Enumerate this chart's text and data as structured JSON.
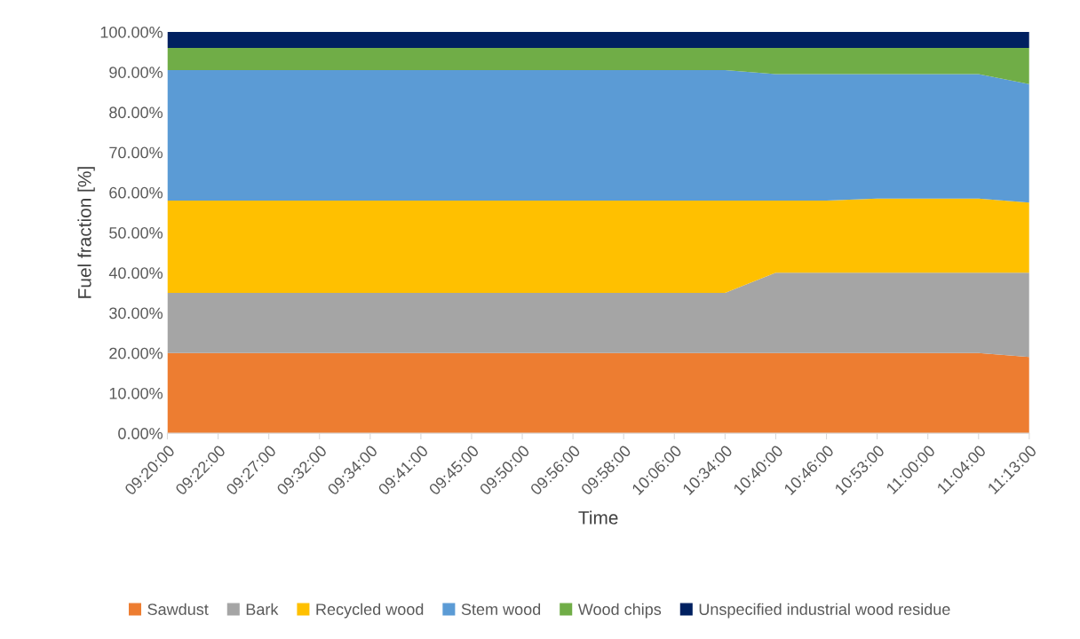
{
  "chart_data": {
    "type": "area",
    "stacked": true,
    "xlabel": "Time",
    "ylabel": "Fuel fraction [%]",
    "categories": [
      "09:20:00",
      "09:22:00",
      "09:27:00",
      "09:32:00",
      "09:34:00",
      "09:41:00",
      "09:45:00",
      "09:50:00",
      "09:56:00",
      "09:58:00",
      "10:06:00",
      "10:34:00",
      "10:40:00",
      "10:46:00",
      "10:53:00",
      "11:00:00",
      "11:04:00",
      "11:13:00"
    ],
    "series": [
      {
        "name": "Sawdust",
        "color": "#ed7d31",
        "values": [
          20,
          20,
          20,
          20,
          20,
          20,
          20,
          20,
          20,
          20,
          20,
          20,
          20,
          20,
          20,
          20,
          20,
          19
        ]
      },
      {
        "name": "Bark",
        "color": "#a5a5a5",
        "values": [
          15,
          15,
          15,
          15,
          15,
          15,
          15,
          15,
          15,
          15,
          15,
          15,
          20,
          20,
          20,
          20,
          20,
          21
        ]
      },
      {
        "name": "Recycled wood",
        "color": "#ffc000",
        "values": [
          23,
          23,
          23,
          23,
          23,
          23,
          23,
          23,
          23,
          23,
          23,
          23,
          18,
          18,
          18.5,
          18.5,
          18.5,
          17.5
        ]
      },
      {
        "name": "Stem wood",
        "color": "#5b9bd5",
        "values": [
          32.5,
          32.5,
          32.5,
          32.5,
          32.5,
          32.5,
          32.5,
          32.5,
          32.5,
          32.5,
          32.5,
          32.5,
          31.5,
          31.5,
          31,
          31,
          31,
          29.5
        ]
      },
      {
        "name": "Wood chips",
        "color": "#70ad47",
        "values": [
          5.5,
          5.5,
          5.5,
          5.5,
          5.5,
          5.5,
          5.5,
          5.5,
          5.5,
          5.5,
          5.5,
          5.5,
          6.5,
          6.5,
          6.5,
          6.5,
          6.5,
          9
        ]
      },
      {
        "name": "Unspecified industrial wood residue",
        "color": "#002060",
        "values": [
          4,
          4,
          4,
          4,
          4,
          4,
          4,
          4,
          4,
          4,
          4,
          4,
          4,
          4,
          4,
          4,
          4,
          4
        ]
      }
    ],
    "ylim": [
      0,
      100
    ],
    "yticks": [
      {
        "value": 0,
        "label": "0.00%"
      },
      {
        "value": 10,
        "label": "10.00%"
      },
      {
        "value": 20,
        "label": "20.00%"
      },
      {
        "value": 30,
        "label": "30.00%"
      },
      {
        "value": 40,
        "label": "40.00%"
      },
      {
        "value": 50,
        "label": "50.00%"
      },
      {
        "value": 60,
        "label": "60.00%"
      },
      {
        "value": 70,
        "label": "70.00%"
      },
      {
        "value": 80,
        "label": "80.00%"
      },
      {
        "value": 90,
        "label": "90.00%"
      },
      {
        "value": 100,
        "label": "100.00%"
      }
    ],
    "legend": "bottom"
  }
}
